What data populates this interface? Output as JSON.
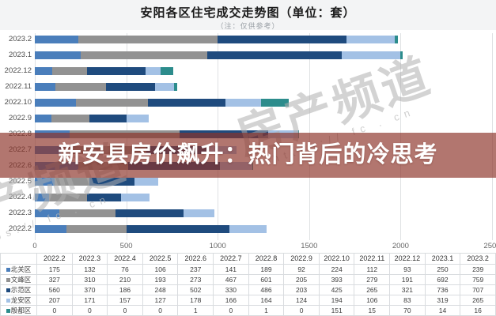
{
  "header": {
    "title": "安阳各区住宅成交走势图（单位：套）",
    "subtitle": "（注：仅供参考）"
  },
  "banner": {
    "text": "新安县房价飙升：热门背后的冷思考",
    "bg_color": "#8C3228"
  },
  "watermark": {
    "text": "房产频道",
    "url": "https:// fc . cn"
  },
  "chart_data": {
    "type": "bar",
    "orientation": "horizontal-stacked",
    "title": "安阳各区住宅成交走势图（单位：套）",
    "subtitle": "（注：仅供参考）",
    "categories": [
      "2022.2",
      "2022.3",
      "2022.4",
      "2022.5",
      "2022.6",
      "2022.7",
      "2022.8",
      "2022.9",
      "2022.10",
      "2022.11",
      "2022.12",
      "2023.1",
      "2023.2"
    ],
    "display_order_top_to_bottom": [
      "2023.2",
      "2023.1",
      "2022.12",
      "2022.11",
      "2022.10",
      "2022.9",
      "2022.8",
      "2022.7",
      "2022.6",
      "2022.5",
      "2022.4",
      "2022.3",
      "2022.2"
    ],
    "series": [
      {
        "name": "北关区",
        "color": "#4A7EBB",
        "values": [
          175,
          132,
          76,
          106,
          237,
          141,
          189,
          92,
          224,
          112,
          93,
          250,
          239
        ]
      },
      {
        "name": "文峰区",
        "color": "#929292",
        "values": [
          327,
          310,
          210,
          193,
          273,
          467,
          601,
          205,
          393,
          279,
          191,
          692,
          759
        ]
      },
      {
        "name": "示范区",
        "color": "#1F4B7E",
        "values": [
          560,
          370,
          186,
          248,
          502,
          330,
          486,
          203,
          425,
          265,
          321,
          736,
          707
        ]
      },
      {
        "name": "龙安区",
        "color": "#A3C1E5",
        "values": [
          207,
          171,
          157,
          127,
          178,
          166,
          164,
          124,
          194,
          106,
          83,
          319,
          265
        ]
      },
      {
        "name": "殷都区",
        "color": "#2C8C8C",
        "values": [
          0,
          0,
          0,
          0,
          1,
          0,
          1,
          0,
          151,
          15,
          70,
          14,
          16
        ]
      }
    ],
    "xlim": [
      0,
      2500
    ],
    "x_ticks": [
      "0",
      "500",
      "1000",
      "1500",
      "2000",
      "2500"
    ],
    "grid": "vertical",
    "legend_position": "table-rows"
  }
}
